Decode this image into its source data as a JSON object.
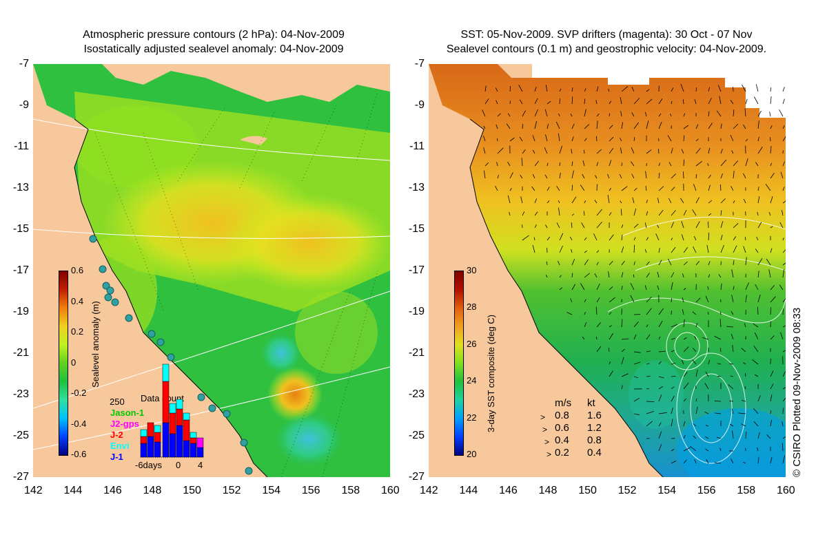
{
  "left_panel": {
    "title_line1": "Atmospheric pressure contours (2 hPa): 04-Nov-2009",
    "title_line2": "Isostatically adjusted sealevel anomaly: 04-Nov-2009",
    "colorbar_label": "Sealevel anomaly (m)",
    "colorbar_ticks": [
      "0.6",
      "0.4",
      "0.2",
      "0",
      "-0.2",
      "-0.4",
      "-0.6"
    ],
    "inset": {
      "title": "Data count",
      "y_tick": "250",
      "x_ticks": [
        "-6days",
        "0",
        "4"
      ],
      "legend": [
        {
          "label": "Jason-1",
          "color": "#00c800"
        },
        {
          "label": "J2-gps",
          "color": "#ff00ff"
        },
        {
          "label": "J-2",
          "color": "#ff0000"
        },
        {
          "label": "Envi",
          "color": "#00ffff"
        },
        {
          "label": "J-1",
          "color": "#0000ff"
        }
      ]
    }
  },
  "right_panel": {
    "title_line1": "SST: 05-Nov-2009. SVP drifters (magenta): 30 Oct - 07 Nov",
    "title_line2": "Sealevel contours (0.1 m) and geostrophic velocity: 04-Nov-2009.",
    "colorbar_label": "3-day SST composite (deg C)",
    "colorbar_ticks": [
      "30",
      "28",
      "26",
      "24",
      "22",
      "20"
    ],
    "velocity_legend": {
      "header_ms": "m/s",
      "header_kt": "kt",
      "rows": [
        {
          "ms": "0.8",
          "kt": "1.6"
        },
        {
          "ms": "0.6",
          "kt": "1.2"
        },
        {
          "ms": "0.4",
          "kt": "0.8"
        },
        {
          "ms": "0.2",
          "kt": "0.4"
        }
      ]
    }
  },
  "axes": {
    "lat_ticks": [
      "-7",
      "-9",
      "-11",
      "-13",
      "-15",
      "-17",
      "-19",
      "-21",
      "-23",
      "-25",
      "-27"
    ],
    "lon_ticks": [
      "142",
      "144",
      "146",
      "148",
      "150",
      "152",
      "154",
      "156",
      "158",
      "160"
    ]
  },
  "copyright": "© CSIRO Plotted 09-Nov-2009 08:33",
  "colors": {
    "land": "#f7c89b",
    "sla_colormap": [
      "#00007f",
      "#0040ff",
      "#00c0ff",
      "#30e0a0",
      "#20c040",
      "#60d020",
      "#c0f020",
      "#f0d020",
      "#f08010",
      "#c02000",
      "#7f0000"
    ],
    "sst_colormap": [
      "#00007f",
      "#0040ff",
      "#00a0ff",
      "#20d0a0",
      "#20c040",
      "#80e020",
      "#e0e020",
      "#f0a020",
      "#e06010",
      "#b01000",
      "#7f0000"
    ]
  }
}
